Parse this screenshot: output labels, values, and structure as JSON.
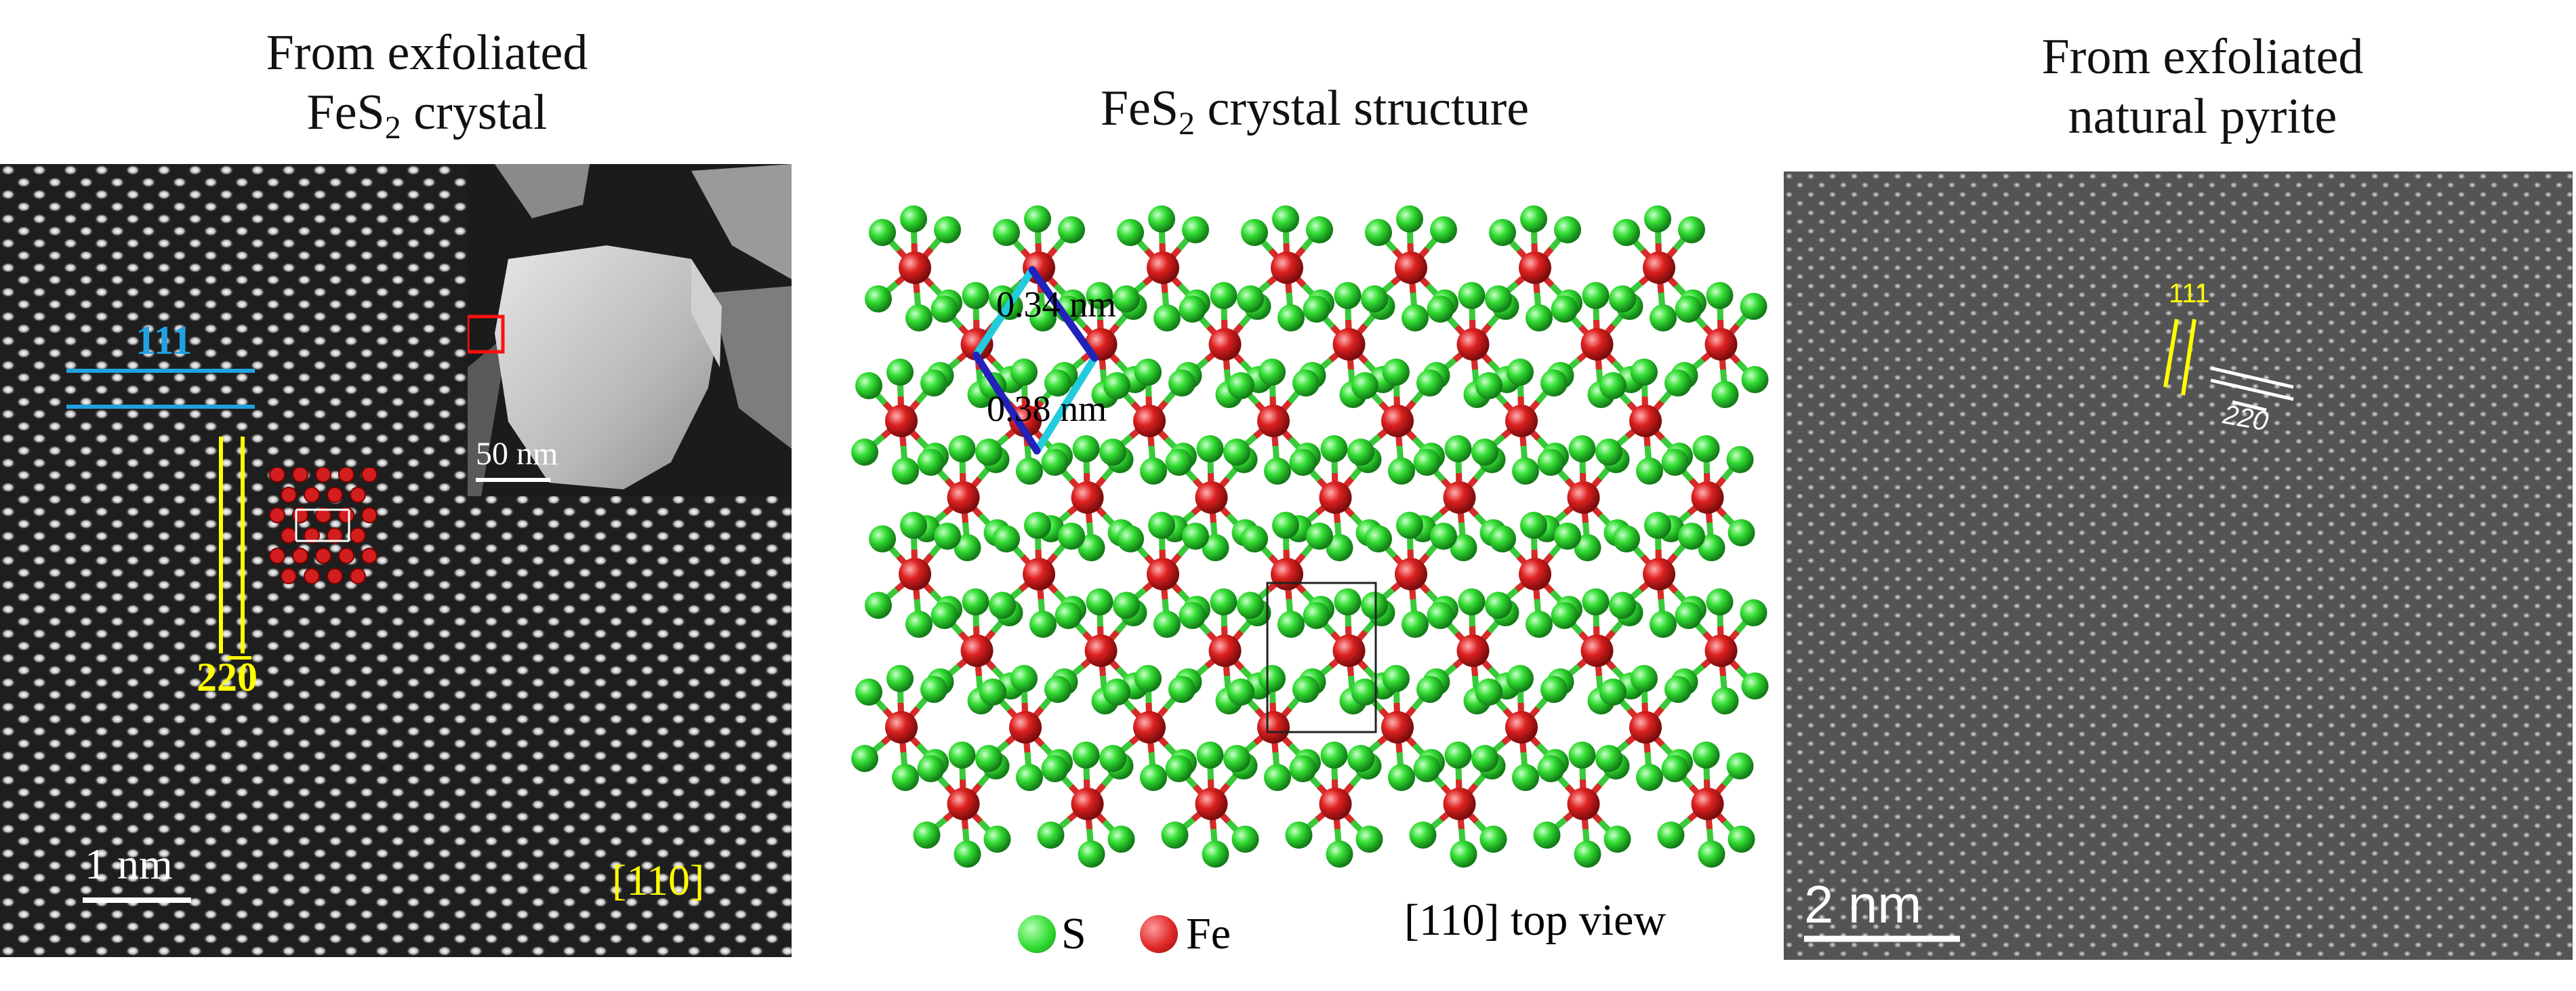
{
  "panel_left": {
    "title_line1": "From exfoliated",
    "title_line2_base": "FeS",
    "title_line2_sub": "2",
    "title_line2_rest": " crystal",
    "label_111": "111",
    "label_220": "220",
    "label_zone": "[110]",
    "scalebar": "1 nm",
    "inset_scalebar": "50 nm",
    "colors": {
      "label_111": "#1fa3e0",
      "label_220": "#ffff00",
      "atoms": "#d21e1e"
    }
  },
  "panel_middle": {
    "title_base": "FeS",
    "title_sub": "2",
    "title_rest": " crystal structure",
    "label_d1": "0.34 nm",
    "label_d2": "0.38 nm",
    "legend_s": "S",
    "legend_fe": "Fe",
    "view_label": "[110] top view",
    "colors": {
      "sulfur": "#33dd33",
      "iron": "#dd2020",
      "cell_dark": "#2222bb",
      "cell_light": "#22ccdd"
    }
  },
  "panel_right": {
    "title_line1": "From exfoliated",
    "title_line2": "natural pyrite",
    "label_111": "111",
    "label_220": "220",
    "scalebar": "2 nm",
    "colors": {
      "label_111": "#ffff00",
      "label_220": "#ffffff"
    }
  }
}
